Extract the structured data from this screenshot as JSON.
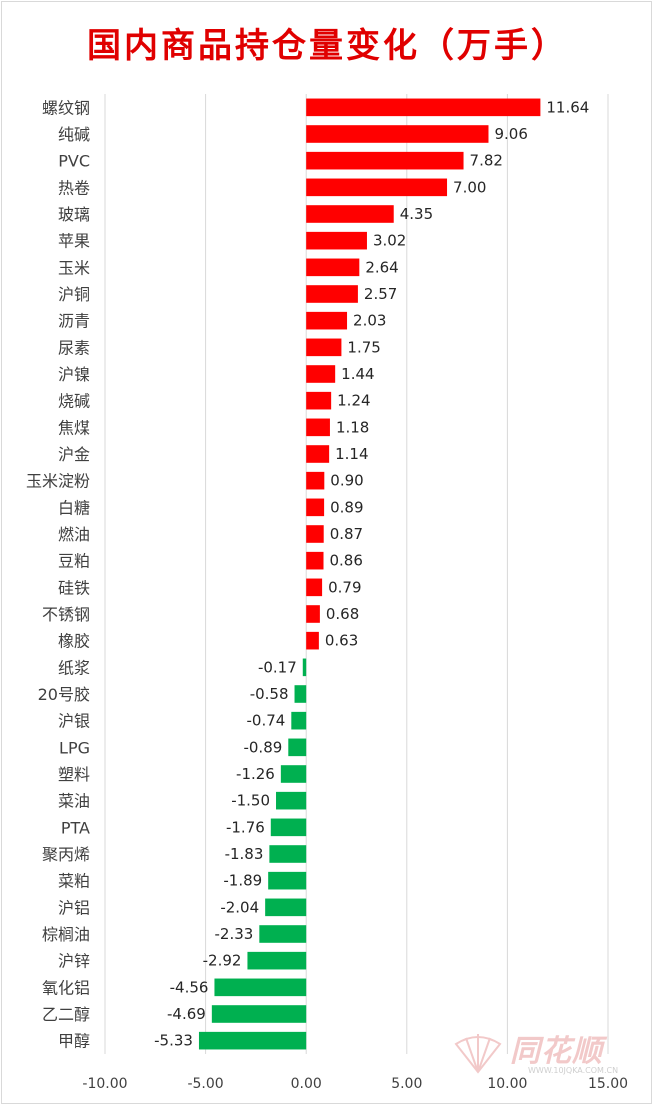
{
  "chart_data": {
    "type": "bar",
    "orientation": "horizontal",
    "title": "国内商品持仓量变化（万手）",
    "xlim": [
      -10,
      15
    ],
    "xticks": [
      "-10.00",
      "-5.00",
      "0.00",
      "5.00",
      "10.00",
      "15.00"
    ],
    "tick_values": [
      -10,
      -5,
      0,
      5,
      10,
      15
    ],
    "grid": true,
    "positive_color": "#ff0000",
    "negative_color": "#00b050",
    "categories": [
      "螺纹钢",
      "纯碱",
      "PVC",
      "热卷",
      "玻璃",
      "苹果",
      "玉米",
      "沪铜",
      "沥青",
      "尿素",
      "沪镍",
      "烧碱",
      "焦煤",
      "沪金",
      "玉米淀粉",
      "白糖",
      "燃油",
      "豆粕",
      "硅铁",
      "不锈钢",
      "橡胶",
      "纸浆",
      "20号胶",
      "沪银",
      "LPG",
      "塑料",
      "菜油",
      "PTA",
      "聚丙烯",
      "菜粕",
      "沪铝",
      "棕榈油",
      "沪锌",
      "氧化铝",
      "乙二醇",
      "甲醇"
    ],
    "values": [
      11.64,
      9.06,
      7.82,
      7.0,
      4.35,
      3.02,
      2.64,
      2.57,
      2.03,
      1.75,
      1.44,
      1.24,
      1.18,
      1.14,
      0.9,
      0.89,
      0.87,
      0.86,
      0.79,
      0.68,
      0.63,
      -0.17,
      -0.58,
      -0.74,
      -0.89,
      -1.26,
      -1.5,
      -1.76,
      -1.83,
      -1.89,
      -2.04,
      -2.33,
      -2.92,
      -4.56,
      -4.69,
      -5.33
    ],
    "labels": [
      "11.64",
      "9.06",
      "7.82",
      "7.00",
      "4.35",
      "3.02",
      "2.64",
      "2.57",
      "2.03",
      "1.75",
      "1.44",
      "1.24",
      "1.18",
      "1.14",
      "0.90",
      "0.89",
      "0.87",
      "0.86",
      "0.79",
      "0.68",
      "0.63",
      "-0.17",
      "-0.58",
      "-0.74",
      "-0.89",
      "-1.26",
      "-1.50",
      "-1.76",
      "-1.83",
      "-1.89",
      "-2.04",
      "-2.33",
      "-2.92",
      "-4.56",
      "-4.69",
      "-5.33"
    ]
  },
  "watermark": {
    "brand": "同花顺",
    "url": "WWW.10JQKA.COM.CN"
  }
}
